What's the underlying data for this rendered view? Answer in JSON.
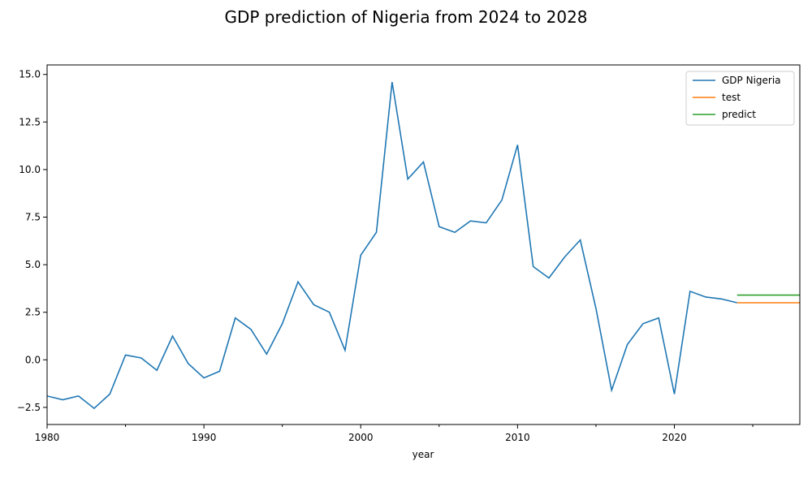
{
  "chart_data": {
    "type": "line",
    "title": "GDP prediction of Nigeria from 2024 to 2028",
    "xlabel": "year",
    "ylabel": "",
    "xlim": [
      1980,
      2028
    ],
    "ylim": [
      -3.4,
      15.5
    ],
    "x_ticks": [
      1980,
      1990,
      2000,
      2010,
      2020
    ],
    "x_tick_labels": [
      "1980",
      "1990",
      "2000",
      "2010",
      "2020"
    ],
    "x_minor_ticks": [
      1985,
      1995,
      2005,
      2015,
      2025
    ],
    "y_ticks": [
      -2.5,
      0.0,
      2.5,
      5.0,
      7.5,
      10.0,
      12.5,
      15.0
    ],
    "y_tick_labels": [
      "−2.5",
      "0.0",
      "2.5",
      "5.0",
      "7.5",
      "10.0",
      "12.5",
      "15.0"
    ],
    "grid": false,
    "legend_position": "top-right",
    "series": [
      {
        "name": "GDP Nigeria",
        "color": "#1f77b4",
        "x": [
          1980,
          1981,
          1982,
          1983,
          1984,
          1985,
          1986,
          1987,
          1988,
          1989,
          1990,
          1991,
          1992,
          1993,
          1994,
          1995,
          1996,
          1997,
          1998,
          1999,
          2000,
          2001,
          2002,
          2003,
          2004,
          2005,
          2006,
          2007,
          2008,
          2009,
          2010,
          2011,
          2012,
          2013,
          2014,
          2015,
          2016,
          2017,
          2018,
          2019,
          2020,
          2021,
          2022,
          2023,
          2024
        ],
        "y": [
          -1.9,
          -2.1,
          -1.9,
          -2.55,
          -1.8,
          0.25,
          0.1,
          -0.55,
          1.25,
          -0.2,
          -0.95,
          -0.6,
          2.2,
          1.6,
          0.3,
          1.9,
          4.1,
          2.9,
          2.5,
          0.5,
          5.5,
          6.7,
          14.6,
          9.5,
          10.4,
          7.0,
          6.7,
          7.3,
          7.2,
          8.4,
          11.3,
          4.9,
          4.3,
          5.4,
          6.3,
          2.7,
          -1.6,
          0.8,
          1.9,
          2.2,
          -1.8,
          3.6,
          3.3,
          3.2,
          3.0
        ]
      },
      {
        "name": "test",
        "color": "#ff7f0e",
        "x": [
          2024,
          2025,
          2026,
          2027,
          2028
        ],
        "y": [
          3.0,
          3.0,
          3.0,
          3.0,
          3.0
        ]
      },
      {
        "name": "predict",
        "color": "#2ca02c",
        "x": [
          2024,
          2025,
          2026,
          2027,
          2028
        ],
        "y": [
          3.4,
          3.4,
          3.4,
          3.4,
          3.4
        ]
      }
    ]
  }
}
